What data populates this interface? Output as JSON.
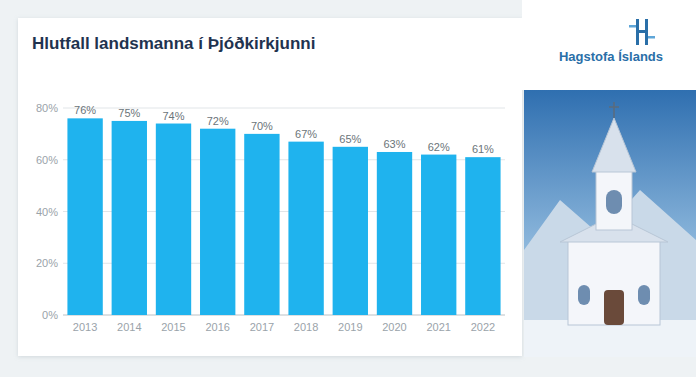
{
  "chart_data": {
    "type": "bar",
    "title": "Hlutfall landsmanna í Þjóðkirkjunni",
    "annotations": [
      "Hagstofa Íslands"
    ],
    "categories": [
      "2013",
      "2014",
      "2015",
      "2016",
      "2017",
      "2018",
      "2019",
      "2020",
      "2021",
      "2022"
    ],
    "values": [
      76,
      75,
      74,
      72,
      70,
      67,
      65,
      63,
      62,
      61
    ],
    "value_labels": [
      "76%",
      "75%",
      "74%",
      "72%",
      "70%",
      "67%",
      "65%",
      "63%",
      "62%",
      "61%"
    ],
    "color": "#1fb3ee",
    "ylim": [
      0,
      80
    ],
    "yticks": [
      {
        "value": 0,
        "label": "0%"
      },
      {
        "value": 20,
        "label": "20%"
      },
      {
        "value": 40,
        "label": "40%"
      },
      {
        "value": 60,
        "label": "60%"
      },
      {
        "value": 80,
        "label": "80%"
      }
    ],
    "grid": true,
    "data_labels": true
  }
}
